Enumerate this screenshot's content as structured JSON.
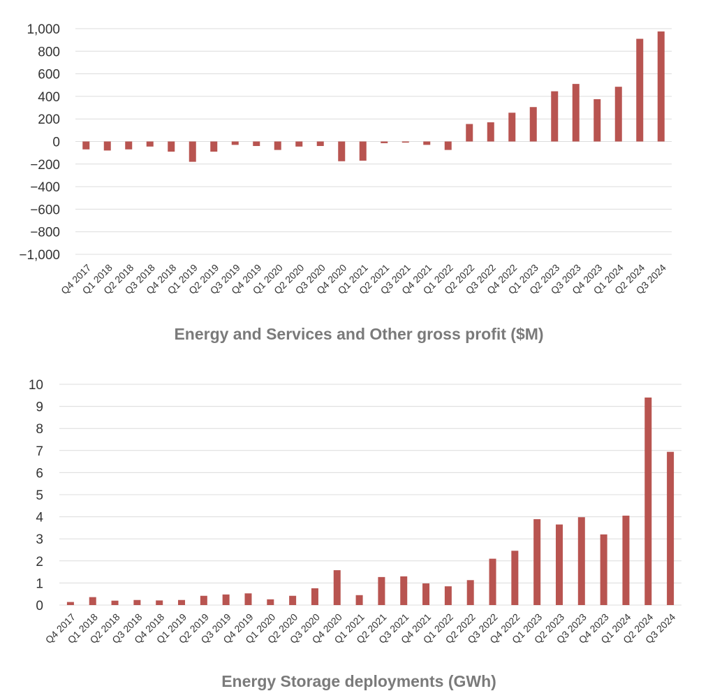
{
  "colors": {
    "bar": "#b85450",
    "grid": "#dcdcdc",
    "text": "#333333",
    "title": "#7a7a7a"
  },
  "chart_data": [
    {
      "type": "bar",
      "title": "Energy and Services and Other gross profit ($M)",
      "xlabel": "",
      "ylabel": "",
      "ylim": [
        -1000,
        1000
      ],
      "yticks": [
        1000,
        800,
        600,
        400,
        200,
        0,
        -200,
        -400,
        -600,
        -800,
        -1000
      ],
      "ytick_labels": [
        "1,000",
        "800",
        "600",
        "400",
        "200",
        "0",
        "−200",
        "−400",
        "−600",
        "−800",
        "−1,000"
      ],
      "grid": true,
      "categories": [
        "Q4 2017",
        "Q1 2018",
        "Q2 2018",
        "Q3 2018",
        "Q4 2018",
        "Q1 2019",
        "Q2 2019",
        "Q3 2019",
        "Q4 2019",
        "Q1 2020",
        "Q2 2020",
        "Q3 2020",
        "Q4 2020",
        "Q1 2021",
        "Q2 2021",
        "Q3 2021",
        "Q4 2021",
        "Q1 2022",
        "Q2 2022",
        "Q3 2022",
        "Q4 2022",
        "Q1 2023",
        "Q2 2023",
        "Q3 2023",
        "Q4 2023",
        "Q1 2024",
        "Q2 2024",
        "Q3 2024"
      ],
      "values": [
        -70,
        -80,
        -70,
        -45,
        -90,
        -180,
        -90,
        -30,
        -40,
        -75,
        -45,
        -40,
        -175,
        -170,
        -15,
        -10,
        -30,
        -75,
        155,
        170,
        255,
        305,
        445,
        510,
        375,
        485,
        910,
        975
      ]
    },
    {
      "type": "bar",
      "title": "Energy Storage deployments (GWh)",
      "xlabel": "",
      "ylabel": "",
      "ylim": [
        0,
        10
      ],
      "yticks": [
        10,
        9,
        8,
        7,
        6,
        5,
        4,
        3,
        2,
        1,
        0
      ],
      "ytick_labels": [
        "10",
        "9",
        "8",
        "7",
        "6",
        "5",
        "4",
        "3",
        "2",
        "1",
        "0"
      ],
      "grid": true,
      "categories": [
        "Q4 2017",
        "Q1 2018",
        "Q2 2018",
        "Q3 2018",
        "Q4 2018",
        "Q1 2019",
        "Q2 2019",
        "Q3 2019",
        "Q4 2019",
        "Q1 2020",
        "Q2 2020",
        "Q3 2020",
        "Q4 2020",
        "Q1 2021",
        "Q2 2021",
        "Q3 2021",
        "Q4 2021",
        "Q1 2022",
        "Q2 2022",
        "Q3 2022",
        "Q4 2022",
        "Q1 2023",
        "Q2 2023",
        "Q3 2023",
        "Q4 2023",
        "Q1 2024",
        "Q2 2024",
        "Q3 2024"
      ],
      "values": [
        0.14,
        0.36,
        0.2,
        0.23,
        0.21,
        0.23,
        0.42,
        0.48,
        0.53,
        0.26,
        0.42,
        0.76,
        1.58,
        0.45,
        1.27,
        1.3,
        0.98,
        0.85,
        1.13,
        2.1,
        2.46,
        3.89,
        3.65,
        3.98,
        3.2,
        4.05,
        9.4,
        6.94
      ]
    }
  ]
}
